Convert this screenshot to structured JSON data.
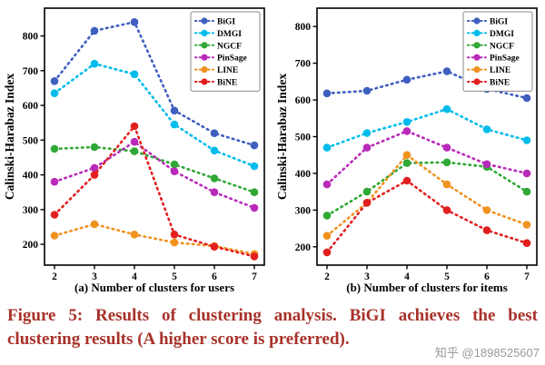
{
  "figure": {
    "caption": "Figure 5: Results of clustering analysis. BiGI achieves the best clustering results (A higher score is preferred).",
    "watermark": "知乎 @1898525607"
  },
  "colors": {
    "caption_text": "#a8322a",
    "watermark_text": "#9a9a9a",
    "bigi": "#3f5fc0",
    "dmgi": "#00bcea",
    "ngcf": "#2fa835",
    "pinsage": "#b82ab8",
    "line": "#f0921e",
    "bine": "#e21f1f"
  },
  "chart_data": [
    {
      "type": "line",
      "style": "dotted-with-circle-markers",
      "title": "",
      "xlabel": "(a) Number of clusters for users",
      "ylabel": "Calinski-Harabaz Index",
      "x": [
        2,
        3,
        4,
        5,
        6,
        7
      ],
      "xticks": [
        2,
        3,
        4,
        5,
        6,
        7
      ],
      "yticks": [
        200,
        300,
        400,
        500,
        600,
        700,
        800
      ],
      "xlim": [
        1.75,
        7.25
      ],
      "ylim": [
        140,
        880
      ],
      "grid": false,
      "legend_position": "top-right",
      "series": [
        {
          "name": "BiGI",
          "color": "#3f5fc0",
          "values": [
            670,
            815,
            840,
            585,
            520,
            485
          ]
        },
        {
          "name": "DMGI",
          "color": "#00bcea",
          "values": [
            635,
            720,
            690,
            545,
            470,
            425
          ]
        },
        {
          "name": "NGCF",
          "color": "#2fa835",
          "values": [
            475,
            480,
            468,
            430,
            390,
            350
          ]
        },
        {
          "name": "PinSage",
          "color": "#b82ab8",
          "values": [
            380,
            420,
            495,
            410,
            350,
            305
          ]
        },
        {
          "name": "LINE",
          "color": "#f0921e",
          "values": [
            225,
            258,
            228,
            205,
            195,
            172
          ]
        },
        {
          "name": "BiNE",
          "color": "#e21f1f",
          "values": [
            285,
            400,
            540,
            228,
            193,
            165
          ]
        }
      ]
    },
    {
      "type": "line",
      "style": "dotted-with-circle-markers",
      "title": "",
      "xlabel": "(b) Number of clusters for items",
      "ylabel": "Calinski-Harabaz Index",
      "x": [
        2,
        3,
        4,
        5,
        6,
        7
      ],
      "xticks": [
        2,
        3,
        4,
        5,
        6,
        7
      ],
      "yticks": [
        200,
        300,
        400,
        500,
        600,
        700,
        800
      ],
      "xlim": [
        1.75,
        7.25
      ],
      "ylim": [
        150,
        850
      ],
      "grid": false,
      "legend_position": "top-right",
      "series": [
        {
          "name": "BiGI",
          "color": "#3f5fc0",
          "values": [
            618,
            625,
            655,
            678,
            630,
            605
          ]
        },
        {
          "name": "DMGI",
          "color": "#00bcea",
          "values": [
            470,
            510,
            540,
            575,
            520,
            490
          ]
        },
        {
          "name": "NGCF",
          "color": "#2fa835",
          "values": [
            285,
            350,
            428,
            430,
            418,
            350
          ]
        },
        {
          "name": "PinSage",
          "color": "#b82ab8",
          "values": [
            370,
            470,
            515,
            470,
            425,
            400
          ]
        },
        {
          "name": "LINE",
          "color": "#f0921e",
          "values": [
            230,
            320,
            450,
            370,
            300,
            260
          ]
        },
        {
          "name": "BiNE",
          "color": "#e21f1f",
          "values": [
            185,
            320,
            380,
            300,
            245,
            210
          ]
        }
      ]
    }
  ]
}
